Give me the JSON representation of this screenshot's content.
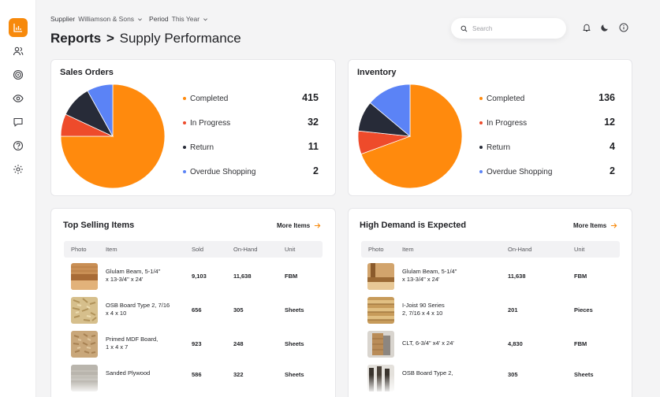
{
  "header": {
    "supplier_label": "Supplier",
    "supplier_value": "Williamson & Sons",
    "period_label": "Period",
    "period_value": "This Year",
    "breadcrumb_root": "Reports",
    "breadcrumb_sep": ">",
    "page_title": "Supply Performance",
    "search_placeholder": "Search"
  },
  "icons": {
    "sidebar": [
      "bar-chart-icon",
      "users-icon",
      "target-icon",
      "eye-icon",
      "chat-icon",
      "help-icon",
      "settings-icon"
    ],
    "header": [
      "search-icon",
      "bell-icon",
      "moon-icon",
      "info-icon"
    ]
  },
  "colors": {
    "accent": "#f7890b",
    "completed": "#ff8a0d",
    "in_progress": "#ee4b2b",
    "return": "#272b38",
    "overdue": "#5b83f6"
  },
  "sales_orders": {
    "title": "Sales Orders",
    "legend": [
      {
        "label": "Completed",
        "value": "415"
      },
      {
        "label": "In Progress",
        "value": "32"
      },
      {
        "label": "Return",
        "value": "11"
      },
      {
        "label": "Overdue Shopping",
        "value": "2"
      }
    ]
  },
  "inventory": {
    "title": "Inventory",
    "legend": [
      {
        "label": "Completed",
        "value": "136"
      },
      {
        "label": "In Progress",
        "value": "12"
      },
      {
        "label": "Return",
        "value": "4"
      },
      {
        "label": "Overdue Shopping",
        "value": "2"
      }
    ]
  },
  "chart_data": [
    {
      "type": "pie",
      "title": "Sales Orders",
      "categories": [
        "Completed",
        "In Progress",
        "Return",
        "Overdue Shopping"
      ],
      "slice_degrees": [
        270,
        25,
        36,
        29
      ],
      "legend_values": [
        415,
        32,
        11,
        2
      ],
      "legend": "right"
    },
    {
      "type": "pie",
      "title": "Inventory",
      "categories": [
        "Completed",
        "In Progress",
        "Return",
        "Overdue Shopping"
      ],
      "slice_degrees": [
        250,
        26,
        34,
        50
      ],
      "legend_values": [
        136,
        12,
        4,
        2
      ],
      "legend": "right"
    }
  ],
  "top_selling": {
    "title": "Top Selling Items",
    "more_label": "More Items",
    "columns": {
      "photo": "Photo",
      "item": "Item",
      "sold": "Sold",
      "on_hand": "On-Hand",
      "unit": "Unit"
    },
    "rows": [
      {
        "item_line1": "Glulam Beam, 5-1/4\"",
        "item_line2": "x 13-3/4\" x 24'",
        "sold": "9,103",
        "on_hand": "11,638",
        "unit": "FBM",
        "photo": "glulam-beam-photo"
      },
      {
        "item_line1": "OSB Board Type 2, 7/16",
        "item_line2": "x 4 x 10",
        "sold": "656",
        "on_hand": "305",
        "unit": "Sheets",
        "photo": "osb-board-photo"
      },
      {
        "item_line1": "Primed MDF Board,",
        "item_line2": "1 x 4 x 7",
        "sold": "923",
        "on_hand": "248",
        "unit": "Sheets",
        "photo": "mdf-board-photo"
      },
      {
        "item_line1": "Sanded Plywood",
        "item_line2": "",
        "sold": "586",
        "on_hand": "322",
        "unit": "Sheets",
        "photo": "plywood-photo"
      }
    ]
  },
  "high_demand": {
    "title": "High Demand is Expected",
    "more_label": "More Items",
    "columns": {
      "photo": "Photo",
      "item": "Item",
      "on_hand": "On-Hand",
      "unit": "Unit"
    },
    "rows": [
      {
        "item_line1": "Glulam Beam, 5-1/4\"",
        "item_line2": "x 13-3/4\" x 24'",
        "on_hand": "11,638",
        "unit": "FBM",
        "photo": "glulam-beam-photo"
      },
      {
        "item_line1": "I-Joist 90 Series",
        "item_line2": "2, 7/16 x 4 x 10",
        "on_hand": "201",
        "unit": "Pieces",
        "photo": "i-joist-photo"
      },
      {
        "item_line1": "CLT, 6-3/4\" x4' x 24'",
        "item_line2": "",
        "on_hand": "4,830",
        "unit": "FBM",
        "photo": "clt-photo"
      },
      {
        "item_line1": "OSB Board Type 2,",
        "item_line2": "",
        "on_hand": "305",
        "unit": "Sheets",
        "photo": "osb-board-photo"
      }
    ]
  }
}
